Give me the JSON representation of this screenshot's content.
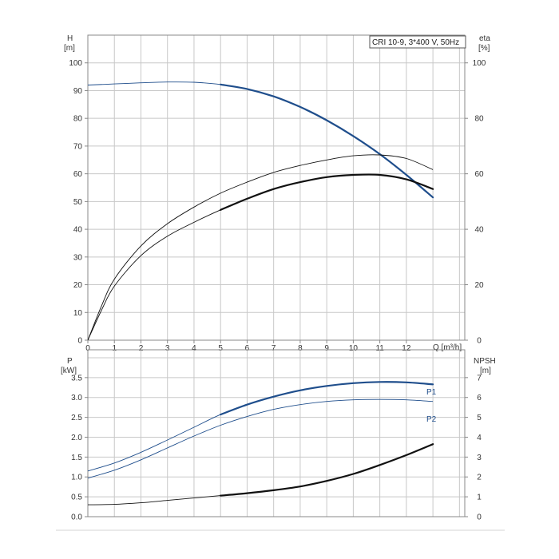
{
  "colors": {
    "blue": "#1f4e8c",
    "black": "#111111",
    "grid": "#c8c8c8",
    "frame": "#888888",
    "footer_line": "#d5d5d5"
  },
  "chart_data": [
    {
      "type": "line",
      "legend_box": "CRI 10-9, 3*400 V, 50Hz",
      "legend_placement": "top-right",
      "grid": true,
      "xlabel": "Q [m³/h]",
      "xlim": [
        0,
        14.2
      ],
      "xticks": [
        "0",
        "1",
        "2",
        "3",
        "4",
        "5",
        "6",
        "7",
        "8",
        "9",
        "10",
        "11",
        "12"
      ],
      "left_axis": {
        "label_line1": "H",
        "label_line2": "[m]",
        "ylim": [
          0,
          110
        ],
        "ticks": [
          "0",
          "10",
          "20",
          "30",
          "40",
          "50",
          "60",
          "70",
          "80",
          "90",
          "100"
        ]
      },
      "right_axis": {
        "label_line1": "eta",
        "label_line2": "[%]",
        "ylim": [
          0,
          110
        ],
        "ticks": [
          "0",
          "20",
          "40",
          "60",
          "80",
          "100"
        ]
      },
      "series": [
        {
          "color": "blue",
          "axis": "left",
          "highlight_from": 5,
          "x": [
            0,
            1,
            2,
            3,
            4,
            5,
            6,
            7,
            8,
            9,
            10,
            11,
            12,
            13
          ],
          "y": [
            92,
            92.4,
            92.8,
            93.1,
            93,
            92.2,
            90.6,
            87.9,
            84.1,
            79.3,
            73.6,
            67.1,
            59.6,
            51.5
          ]
        },
        {
          "color": "black",
          "axis": "right",
          "highlight_from": 13.5,
          "x": [
            0,
            0.5,
            1,
            2,
            3,
            4,
            5,
            6,
            7,
            8,
            9,
            10,
            11,
            12,
            13
          ],
          "y": [
            0,
            12,
            22,
            34,
            42,
            48,
            53,
            57,
            60.5,
            63,
            65,
            66.5,
            66.8,
            65.5,
            61.5
          ]
        },
        {
          "color": "black",
          "axis": "right",
          "highlight_from": 5,
          "x": [
            0,
            0.5,
            1,
            2,
            3,
            4,
            5,
            6,
            7,
            8,
            9,
            10,
            11,
            12,
            13
          ],
          "y": [
            0,
            10.5,
            19.5,
            30.5,
            37.5,
            42.5,
            47,
            51,
            54.5,
            57,
            58.8,
            59.6,
            59.6,
            58,
            54.5
          ]
        }
      ]
    },
    {
      "type": "line",
      "grid": true,
      "xlim": [
        0,
        14.2
      ],
      "left_axis": {
        "label_line1": "P",
        "label_line2": "[kW]",
        "ylim": [
          0,
          4.2
        ],
        "ticks": [
          "0.0",
          "0.5",
          "1.0",
          "1.5",
          "2.0",
          "2.5",
          "3.0",
          "3.5"
        ]
      },
      "right_axis": {
        "label_line1": "NPSH",
        "label_line2": "[m]",
        "ylim": [
          0,
          8.4
        ],
        "ticks": [
          "0",
          "1",
          "2",
          "3",
          "4",
          "5",
          "6",
          "7"
        ]
      },
      "series": [
        {
          "name": "P1",
          "color": "blue",
          "axis": "left",
          "highlight_from": 5,
          "x": [
            0,
            1,
            2,
            3,
            4,
            5,
            6,
            7,
            8,
            9,
            10,
            11,
            12,
            13
          ],
          "y": [
            1.15,
            1.35,
            1.62,
            1.93,
            2.25,
            2.57,
            2.82,
            3.02,
            3.18,
            3.29,
            3.36,
            3.39,
            3.38,
            3.33
          ]
        },
        {
          "name": "P2",
          "color": "blue",
          "axis": "left",
          "highlight_from": 13.5,
          "x": [
            0,
            1,
            2,
            3,
            4,
            5,
            6,
            7,
            8,
            9,
            10,
            11,
            12,
            13
          ],
          "y": [
            0.97,
            1.17,
            1.43,
            1.73,
            2.03,
            2.3,
            2.52,
            2.7,
            2.82,
            2.9,
            2.94,
            2.95,
            2.94,
            2.9
          ]
        },
        {
          "color": "black",
          "axis": "right",
          "highlight_from": 5,
          "x": [
            0,
            1,
            2,
            3,
            4,
            5,
            6,
            7,
            8,
            9,
            10,
            11,
            12,
            13
          ],
          "y": [
            0.6,
            0.62,
            0.7,
            0.82,
            0.94,
            1.06,
            1.18,
            1.33,
            1.52,
            1.8,
            2.15,
            2.6,
            3.1,
            3.65
          ]
        }
      ]
    }
  ]
}
